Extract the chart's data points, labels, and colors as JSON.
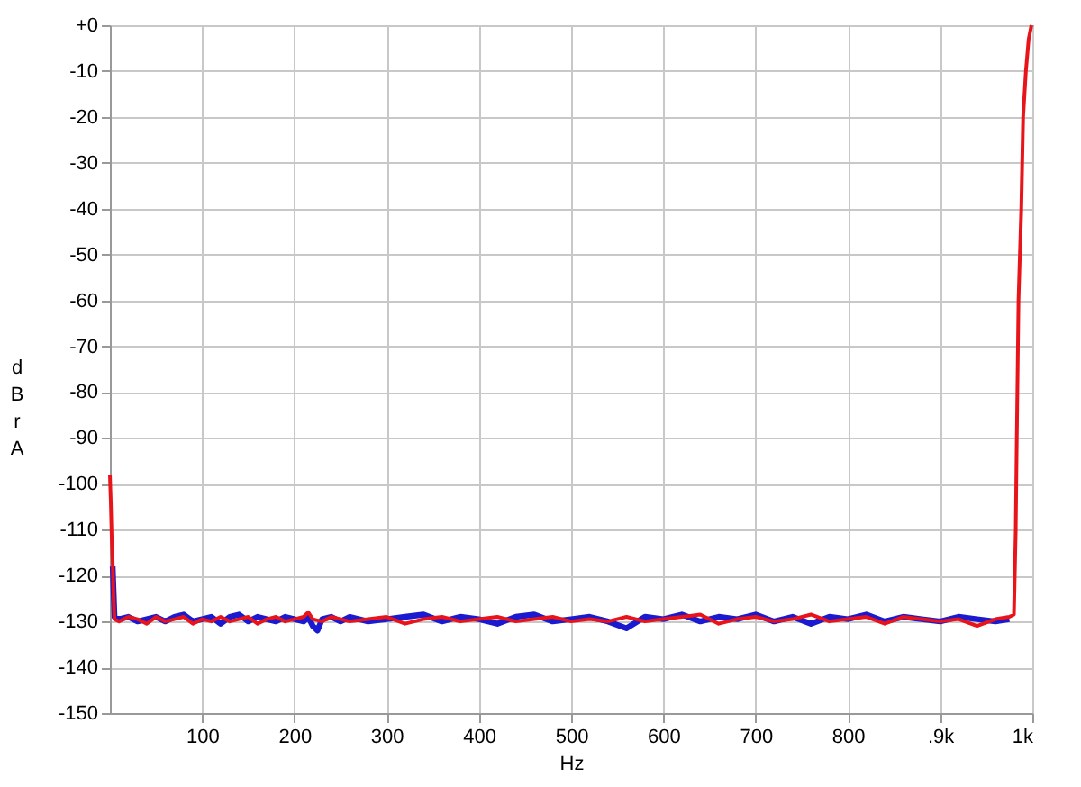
{
  "chart_data": {
    "type": "line",
    "xlabel": "Hz",
    "ylabel": "dBr A",
    "xlim": [
      0,
      1000
    ],
    "ylim": [
      -150,
      0
    ],
    "xticks": [
      100,
      200,
      300,
      400,
      500,
      600,
      700,
      800,
      {
        "value": 900,
        "label": ".9k"
      },
      {
        "value": 1000,
        "label": "1k"
      }
    ],
    "yticks": [
      {
        "value": 0,
        "label": "+0"
      },
      -10,
      -20,
      -30,
      -40,
      -50,
      -60,
      -70,
      -80,
      -90,
      -100,
      -110,
      -120,
      -130,
      -140,
      -150
    ],
    "grid": true,
    "line_style": "solid",
    "marker": "none",
    "series": [
      {
        "color": "#1a1ad0",
        "x": [
          3,
          5,
          10,
          20,
          30,
          40,
          50,
          60,
          70,
          80,
          90,
          100,
          110,
          120,
          130,
          140,
          150,
          160,
          170,
          180,
          190,
          200,
          210,
          215,
          220,
          225,
          230,
          240,
          250,
          260,
          280,
          300,
          320,
          340,
          360,
          380,
          400,
          420,
          440,
          460,
          480,
          500,
          520,
          540,
          560,
          580,
          600,
          620,
          640,
          660,
          680,
          700,
          720,
          740,
          760,
          780,
          800,
          820,
          840,
          860,
          880,
          900,
          920,
          940,
          960,
          975
        ],
        "values": [
          -118,
          -129,
          -129.5,
          -129,
          -130,
          -129.5,
          -129,
          -130,
          -129,
          -128.5,
          -130,
          -129.5,
          -129,
          -130.5,
          -129,
          -128.5,
          -130,
          -129,
          -129.5,
          -130,
          -129,
          -129.5,
          -130,
          -129,
          -131,
          -132,
          -129.5,
          -129,
          -130,
          -129,
          -130,
          -129.5,
          -129,
          -128.5,
          -130,
          -129,
          -129.5,
          -130.5,
          -129,
          -128.5,
          -130,
          -129.5,
          -129,
          -130,
          -131.5,
          -129,
          -129.5,
          -128.5,
          -130,
          -129,
          -129.5,
          -128.5,
          -130,
          -129,
          -130.5,
          -129,
          -129.5,
          -128.5,
          -130,
          -129,
          -129.5,
          -130,
          -129,
          -129.5,
          -130,
          -129.5
        ]
      },
      {
        "color": "#e8141a",
        "x": [
          0,
          1,
          2,
          3,
          4,
          5,
          10,
          20,
          30,
          40,
          50,
          60,
          70,
          80,
          90,
          100,
          110,
          120,
          130,
          140,
          150,
          160,
          170,
          180,
          190,
          200,
          210,
          215,
          220,
          230,
          240,
          250,
          260,
          280,
          300,
          320,
          340,
          360,
          380,
          400,
          420,
          440,
          460,
          480,
          500,
          520,
          540,
          560,
          580,
          600,
          620,
          640,
          660,
          680,
          700,
          720,
          740,
          760,
          780,
          800,
          820,
          840,
          860,
          880,
          900,
          920,
          940,
          960,
          975,
          980,
          982,
          983,
          985,
          988,
          990,
          993,
          996,
          999
        ],
        "values": [
          -98,
          -104,
          -112,
          -117,
          -125,
          -129.5,
          -130,
          -129,
          -129.5,
          -130.5,
          -129,
          -130,
          -129.5,
          -129,
          -130.5,
          -129.5,
          -130,
          -129,
          -130,
          -129.5,
          -129,
          -130.5,
          -129.5,
          -129,
          -130,
          -129.5,
          -129,
          -128,
          -129.5,
          -130,
          -129,
          -129.5,
          -130,
          -129.5,
          -129,
          -130.5,
          -129.5,
          -129,
          -130,
          -129.5,
          -129,
          -130,
          -129.5,
          -129,
          -130,
          -129.5,
          -130,
          -129,
          -130,
          -129.5,
          -129,
          -128.5,
          -130.5,
          -129.5,
          -129,
          -130,
          -129.5,
          -128.5,
          -130,
          -129.5,
          -129,
          -130.5,
          -129,
          -129.5,
          -130,
          -129.5,
          -131,
          -129.5,
          -129,
          -128.5,
          -110,
          -92,
          -60,
          -40,
          -20,
          -10,
          -3,
          0
        ]
      }
    ]
  }
}
